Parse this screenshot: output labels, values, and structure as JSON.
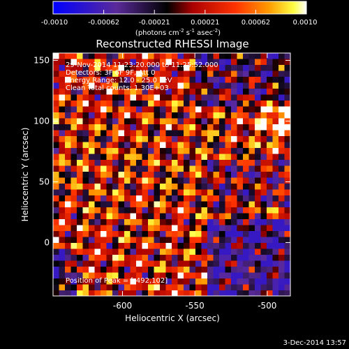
{
  "chart_data": {
    "type": "heatmap",
    "title": "Reconstructed RHESSI Image",
    "colorbar": {
      "ticks": [
        "-0.0010",
        "-0.00062",
        "-0.00021",
        "0.00021",
        "0.00062",
        "0.0010"
      ],
      "range": [
        -0.001,
        0.001
      ],
      "unit_main": "(photons cm",
      "unit_exp1": "-2",
      "unit_mid": " s",
      "unit_exp2": "-1",
      "unit_end": " asec",
      "unit_exp3": "-2",
      "unit_close": ")"
    },
    "xlabel": "Heliocentric X (arcsec)",
    "ylabel": "Heliocentric Y (arcsec)",
    "xlim": [
      -648,
      -484
    ],
    "ylim": [
      -44,
      156
    ],
    "xticks": [
      "-600",
      "-550",
      "-500"
    ],
    "xtick_values": [
      -600,
      -550,
      -500
    ],
    "yticks": [
      "0",
      "50",
      "100",
      "150"
    ],
    "ytick_values": [
      0,
      50,
      100,
      150
    ],
    "annotations": [
      "29-Nov-2014 11:23:20.000 to 11:25:52.000",
      "Detectors: 3F 6F 9F, Att 0",
      "Energy Range: 12.0 - 25.0 keV",
      "Clean     Total counts: 1.30E+03"
    ],
    "peak_label": "Position of Peak = [-492,102]",
    "peak_position": [
      -492,
      102
    ],
    "grid": false,
    "colormap": "blue-purple-black-red-orange-yellow-white"
  },
  "footer": {
    "timestamp": "3-Dec-2014 13:57"
  }
}
